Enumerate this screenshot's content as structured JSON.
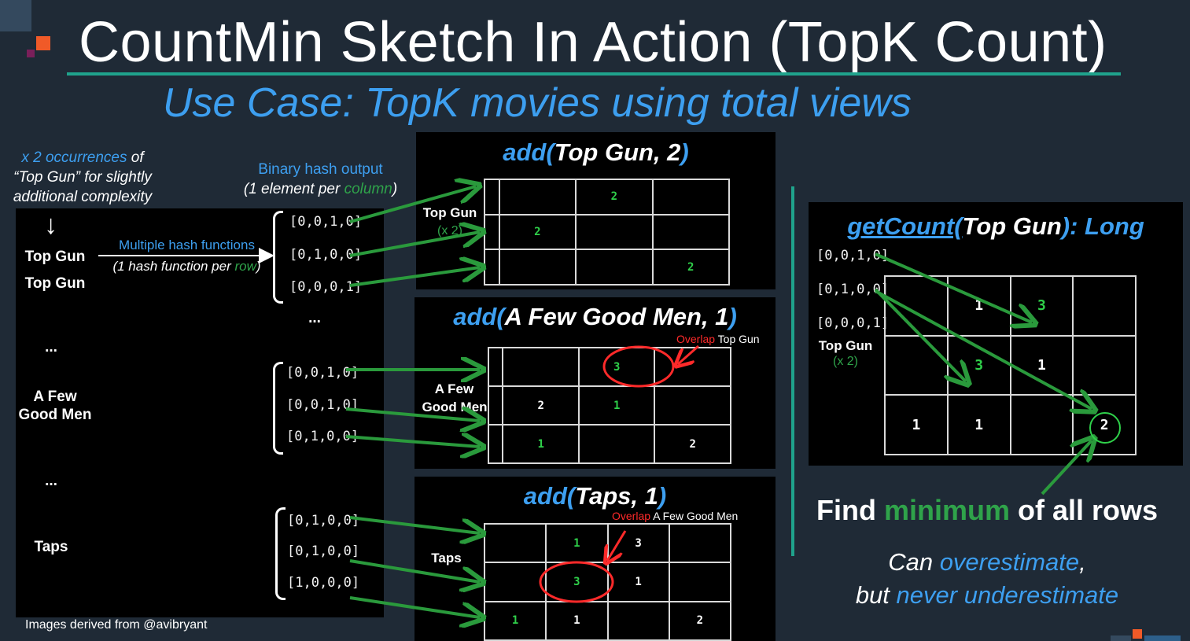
{
  "title": "CountMin Sketch In Action (TopK Count)",
  "subtitle": "Use Case:  TopK movies using total views",
  "colors": {
    "background": "#1f2a36",
    "accent_teal": "#1fa38c",
    "blue": "#3d9ff0",
    "green": "#2fa34a",
    "red": "#ff2a2a",
    "logo_orange": "#f05a28",
    "logo_purple": "#7a1f5a"
  },
  "left": {
    "note_line1": "x 2 occurrences",
    "note_line1b": "of",
    "note_line2": "“Top Gun” for slightly",
    "note_line3": "additional complexity",
    "arrow": "↓",
    "binary_title": "Binary hash output",
    "binary_sub_a": "(1 element per ",
    "binary_sub_b": "column",
    "binary_sub_c": ")",
    "multi_title": "Multiple hash functions",
    "multi_sub_a": "(1 hash function per ",
    "multi_sub_b": "row",
    "multi_sub_c": ")",
    "item_topgun_1": "Top Gun",
    "item_topgun_2": "Top Gun",
    "ellipsis_1": "...",
    "ellipsis_2": "...",
    "ellipsis_3": "...",
    "item_afgm_1": "A Few",
    "item_afgm_2": "Good Men",
    "item_taps": "Taps",
    "topgun_hashes": [
      "[0,0,1,0]",
      "[0,1,0,0]",
      "[0,0,0,1]"
    ],
    "afgm_hashes": [
      "[0,0,1,0]",
      "[0,0,1,0]",
      "[0,1,0,0]"
    ],
    "taps_hashes": [
      "[0,1,0,0]",
      "[0,1,0,0]",
      "[1,0,0,0]"
    ],
    "credit": "Images derived from @avibryant"
  },
  "panel1": {
    "func": "add(",
    "args": "Top Gun, 2",
    "close": ")",
    "label": "Top Gun",
    "label_sub": "(x 2)",
    "grid": [
      [
        "",
        "",
        "2",
        ""
      ],
      [
        "",
        "2",
        "",
        ""
      ],
      [
        "",
        "",
        "",
        "2"
      ]
    ]
  },
  "panel2": {
    "func": "add(",
    "args": "A Few Good Men, 1",
    "close": ")",
    "label1": "A Few",
    "label2": "Good Men",
    "overlap_a": "Overlap",
    "overlap_b": " Top Gun",
    "grid": [
      [
        "",
        "",
        "3",
        ""
      ],
      [
        "",
        "2",
        "1",
        ""
      ],
      [
        "",
        "1",
        "",
        "2"
      ]
    ]
  },
  "panel3": {
    "func": "add(",
    "args": "Taps, 1",
    "close": ")",
    "label": "Taps",
    "overlap_a": "Overlap",
    "overlap_b": " A Few Good Men",
    "grid": [
      [
        "",
        "1",
        "3",
        ""
      ],
      [
        "",
        "3",
        "1",
        ""
      ],
      [
        "1",
        "1",
        "",
        "2"
      ]
    ]
  },
  "right": {
    "func": "getCount(",
    "args": "Top Gun",
    "close": ")",
    "ret": ": Long",
    "hashes": [
      "[0,0,1,0]",
      "[0,1,0,0]",
      "[0,0,0,1]"
    ],
    "label": "Top Gun",
    "label_sub": "(x 2)",
    "grid": [
      [
        "",
        "1",
        "3",
        ""
      ],
      [
        "",
        "3",
        "1",
        ""
      ],
      [
        "1",
        "1",
        "",
        "2"
      ]
    ],
    "find_a": "Find ",
    "find_b": "minimum",
    "find_c": " of all rows",
    "can_a": "Can ",
    "can_b": "overestimate",
    "can_c": ",",
    "but_a": "but ",
    "but_b": "never underestimate"
  }
}
